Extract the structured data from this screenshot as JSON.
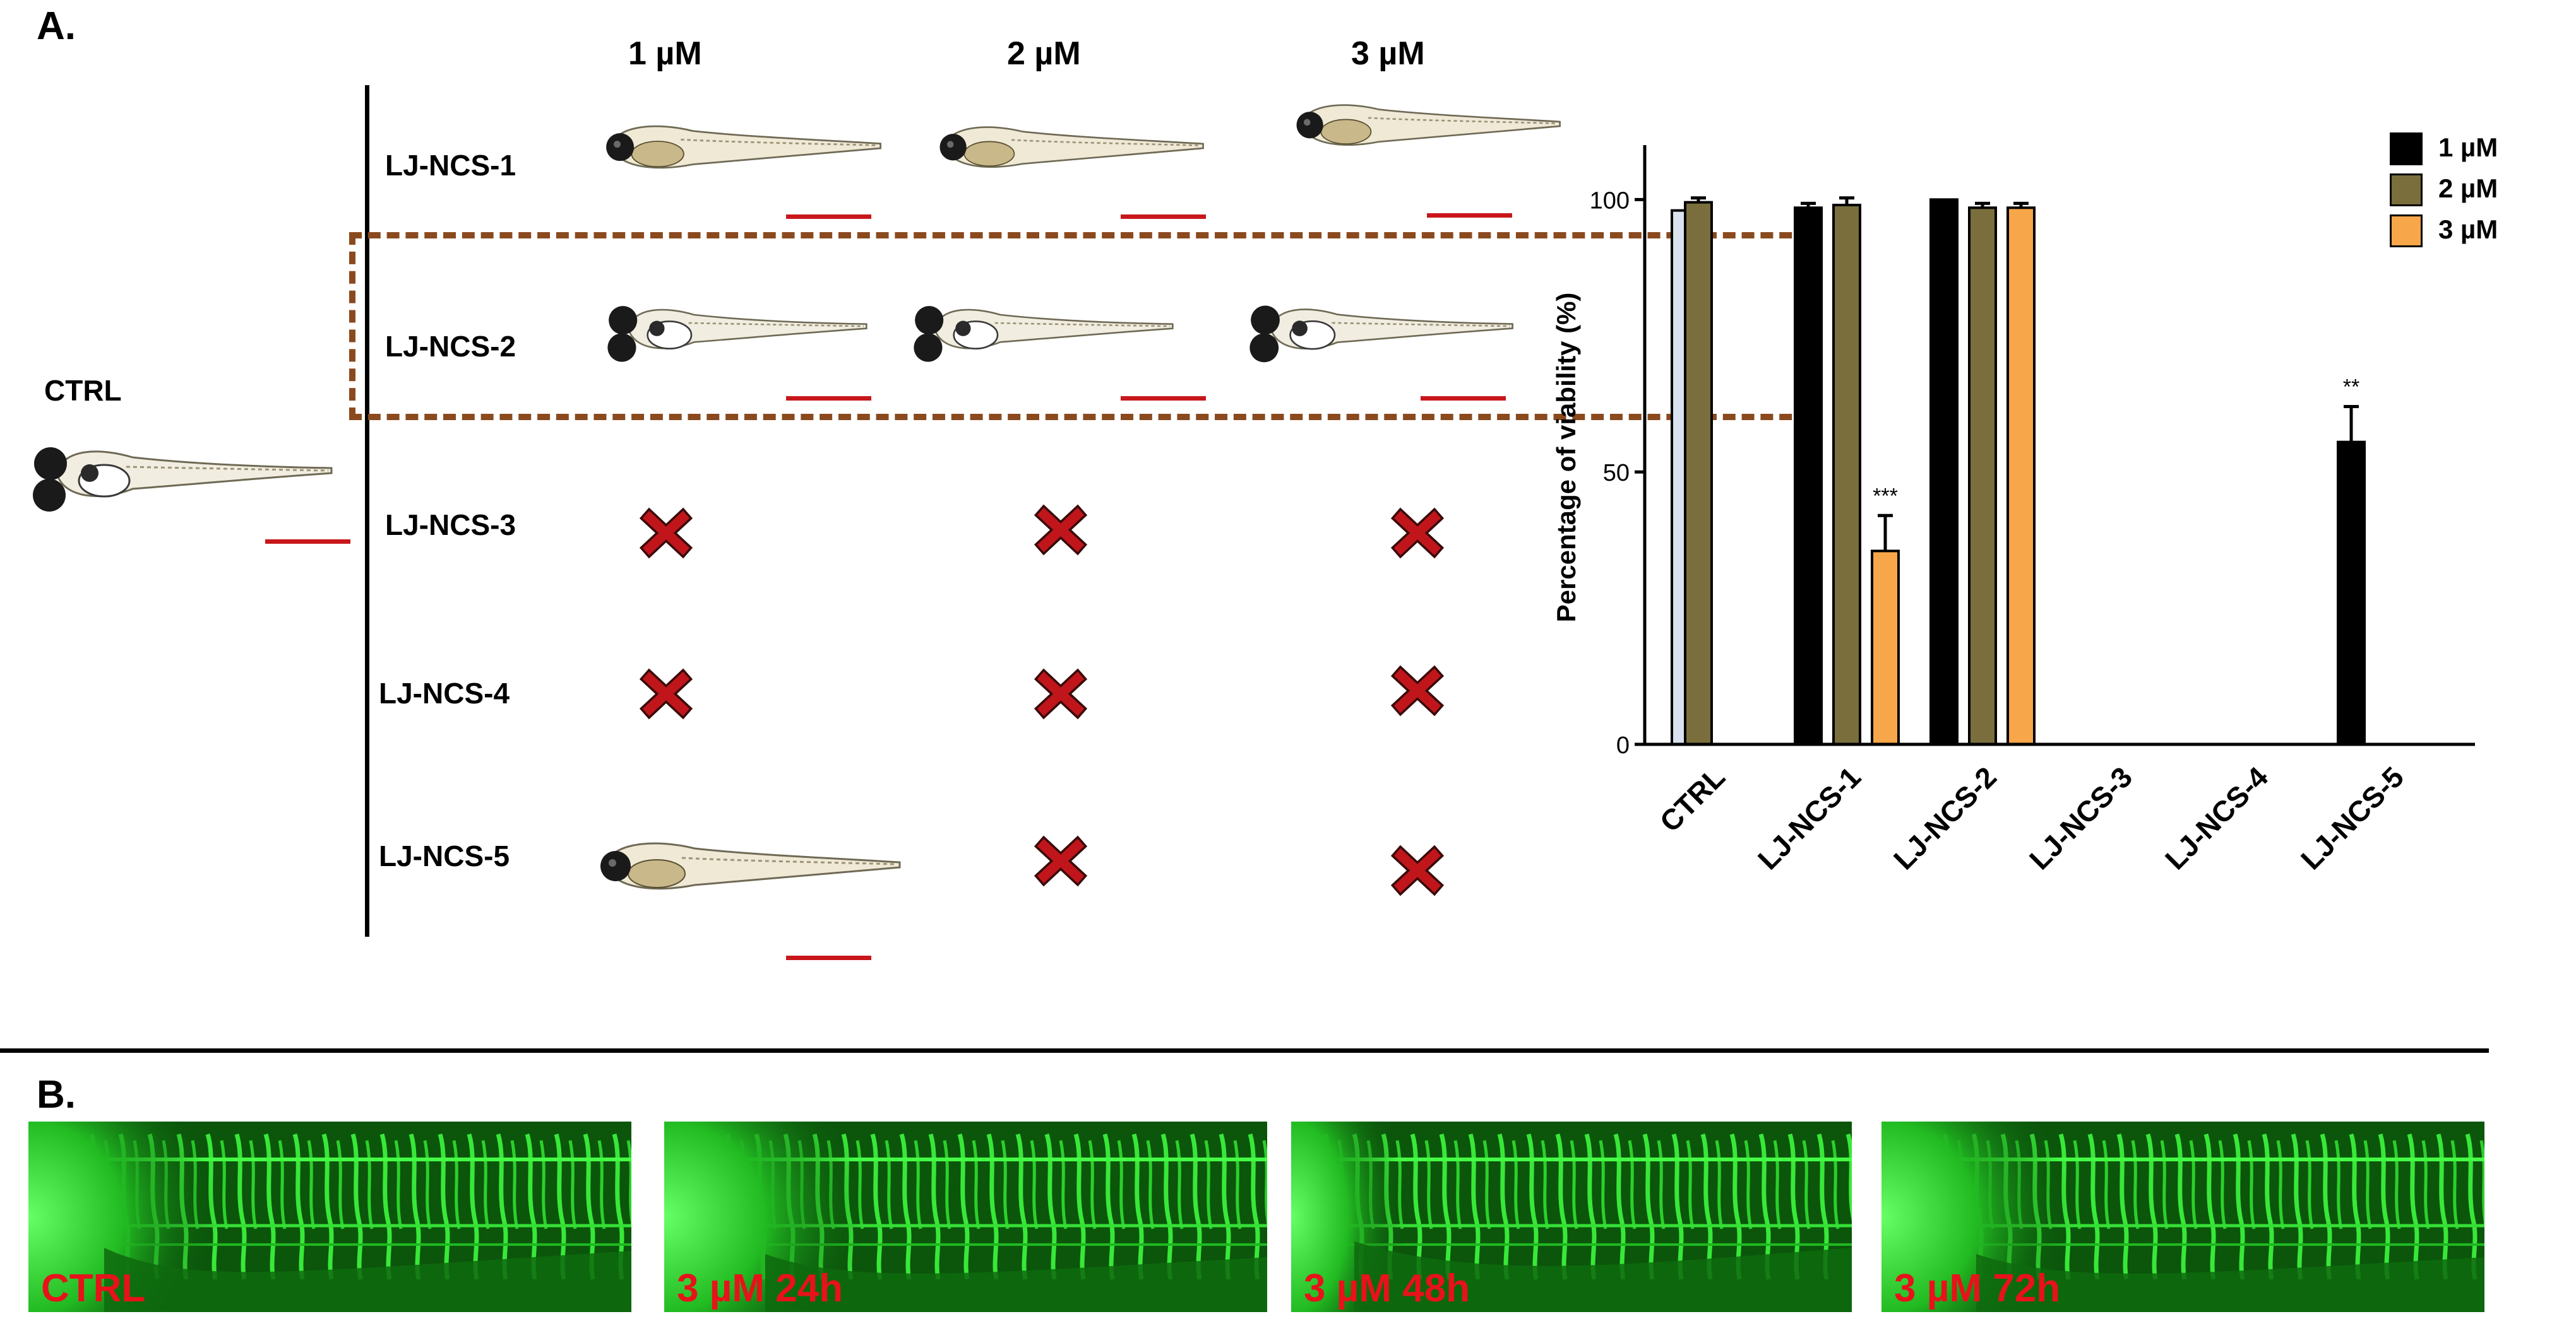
{
  "panel_a": {
    "letter": "A.",
    "columns": [
      "1 µM",
      "2 µM",
      "3 µM"
    ],
    "rows": [
      "LJ-NCS-1",
      "LJ-NCS-2",
      "LJ-NCS-3",
      "LJ-NCS-4",
      "LJ-NCS-5"
    ],
    "ctrl_label": "CTRL",
    "outcome_grid": [
      [
        "larva",
        "larva",
        "larva"
      ],
      [
        "larva-edema",
        "larva-edema",
        "larva-edema"
      ],
      [
        "dead",
        "dead",
        "dead"
      ],
      [
        "dead",
        "dead",
        "dead"
      ],
      [
        "larva",
        "dead",
        "dead"
      ]
    ],
    "colors": {
      "scale_bar": "#c8171b",
      "dead_mark": "#c0161b",
      "highlight_box": "#8a4a1e"
    }
  },
  "chart_data": {
    "type": "bar",
    "ylabel": "Percentage of viability (%)",
    "xlabel": "",
    "ylim": [
      0,
      110
    ],
    "yticks": [
      0,
      50,
      100
    ],
    "categories": [
      "CTRL",
      "LJ-NCS-1",
      "LJ-NCS-2",
      "LJ-NCS-3",
      "LJ-NCS-4",
      "LJ-NCS-5"
    ],
    "series": [
      {
        "name": "1 µM",
        "color": "#000000",
        "values": [
          98,
          98.5,
          100,
          0,
          0,
          55.5
        ],
        "errors": [
          0,
          0.8,
          0,
          0,
          0,
          6.5
        ]
      },
      {
        "name": "2 µM",
        "color": "#7a6e3c",
        "values": [
          99.5,
          99,
          98.5,
          0,
          0,
          0
        ],
        "errors": [
          0.8,
          1.3,
          0.8,
          0,
          0,
          0
        ]
      },
      {
        "name": "3 µM",
        "color": "#f7a64a",
        "values": [
          null,
          35.5,
          98.5,
          0,
          0,
          0
        ],
        "errors": [
          0,
          6.5,
          0.8,
          0,
          0,
          0
        ]
      }
    ],
    "ctrl_bar_color": "#d9e2ee",
    "annotations": [
      {
        "category": "LJ-NCS-1",
        "series": "3 µM",
        "text": "***"
      },
      {
        "category": "LJ-NCS-5",
        "series": "1 µM",
        "text": "**"
      }
    ],
    "legend": {
      "placement": "top-right",
      "entries": [
        "1 µM",
        "2 µM",
        "3 µM"
      ]
    }
  },
  "panel_b": {
    "letter": "B.",
    "images": [
      "CTRL",
      "3 µM 24h",
      "3 µM 48h",
      "3 µM 72h"
    ],
    "colors": {
      "label": "#e8121a",
      "vessel": "#3cf03c",
      "background": "#0b560b"
    }
  }
}
